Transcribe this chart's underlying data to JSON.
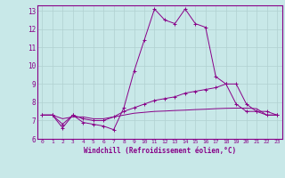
{
  "xlabel": "Windchill (Refroidissement éolien,°C)",
  "background_color": "#c8e8e8",
  "grid_color": "#b0d0d0",
  "line_color": "#880088",
  "xlim": [
    -0.5,
    23.5
  ],
  "ylim": [
    6,
    13.3
  ],
  "yticks": [
    6,
    7,
    8,
    9,
    10,
    11,
    12,
    13
  ],
  "xticks": [
    0,
    1,
    2,
    3,
    4,
    5,
    6,
    7,
    8,
    9,
    10,
    11,
    12,
    13,
    14,
    15,
    16,
    17,
    18,
    19,
    20,
    21,
    22,
    23
  ],
  "line1_x": [
    0,
    1,
    2,
    3,
    4,
    5,
    6,
    7,
    8,
    9,
    10,
    11,
    12,
    13,
    14,
    15,
    16,
    17,
    18,
    19,
    20,
    21,
    22,
    23
  ],
  "line1_y": [
    7.3,
    7.3,
    6.6,
    7.3,
    6.9,
    6.8,
    6.7,
    6.5,
    7.7,
    9.7,
    11.4,
    13.1,
    12.5,
    12.3,
    13.1,
    12.3,
    12.1,
    9.4,
    9.0,
    7.9,
    7.5,
    7.5,
    7.3,
    7.3
  ],
  "line2_x": [
    0,
    1,
    2,
    3,
    4,
    5,
    6,
    7,
    8,
    9,
    10,
    11,
    12,
    13,
    14,
    15,
    16,
    17,
    18,
    19,
    20,
    21,
    22,
    23
  ],
  "line2_y": [
    7.3,
    7.3,
    6.8,
    7.3,
    7.1,
    7.0,
    7.0,
    7.2,
    7.5,
    7.7,
    7.9,
    8.1,
    8.2,
    8.3,
    8.5,
    8.6,
    8.7,
    8.8,
    9.0,
    9.0,
    7.9,
    7.5,
    7.5,
    7.3
  ],
  "line3_x": [
    0,
    1,
    2,
    3,
    4,
    5,
    6,
    7,
    8,
    9,
    10,
    11,
    12,
    13,
    14,
    15,
    16,
    17,
    18,
    19,
    20,
    21,
    22,
    23
  ],
  "line3_y": [
    7.3,
    7.3,
    7.1,
    7.2,
    7.2,
    7.1,
    7.1,
    7.2,
    7.3,
    7.4,
    7.45,
    7.5,
    7.52,
    7.55,
    7.57,
    7.6,
    7.62,
    7.65,
    7.67,
    7.68,
    7.68,
    7.65,
    7.3,
    7.3
  ]
}
